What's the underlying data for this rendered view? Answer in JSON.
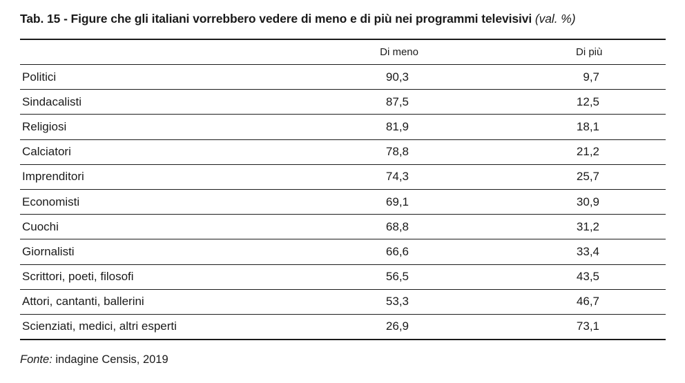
{
  "title": {
    "text": "Tab. 15 - Figure che gli italiani vorrebbero vedere di meno e di più nei programmi televisivi",
    "unit": "(val. %)"
  },
  "table": {
    "columns": [
      "",
      "Di meno",
      "Di più"
    ],
    "rows": [
      {
        "label": "Politici",
        "di_meno": "90,3",
        "di_piu": "9,7"
      },
      {
        "label": "Sindacalisti",
        "di_meno": "87,5",
        "di_piu": "12,5"
      },
      {
        "label": "Religiosi",
        "di_meno": "81,9",
        "di_piu": "18,1"
      },
      {
        "label": "Calciatori",
        "di_meno": "78,8",
        "di_piu": "21,2"
      },
      {
        "label": "Imprenditori",
        "di_meno": "74,3",
        "di_piu": "25,7"
      },
      {
        "label": "Economisti",
        "di_meno": "69,1",
        "di_piu": "30,9"
      },
      {
        "label": "Cuochi",
        "di_meno": "68,8",
        "di_piu": "31,2"
      },
      {
        "label": "Giornalisti",
        "di_meno": "66,6",
        "di_piu": "33,4"
      },
      {
        "label": "Scrittori, poeti, filosofi",
        "di_meno": "56,5",
        "di_piu": "43,5"
      },
      {
        "label": "Attori, cantanti, ballerini",
        "di_meno": "53,3",
        "di_piu": "46,7"
      },
      {
        "label": "Scienziati, medici, altri esperti",
        "di_meno": "26,9",
        "di_piu": "73,1"
      }
    ]
  },
  "source": {
    "label": "Fonte:",
    "text": "indagine Censis, 2019"
  }
}
